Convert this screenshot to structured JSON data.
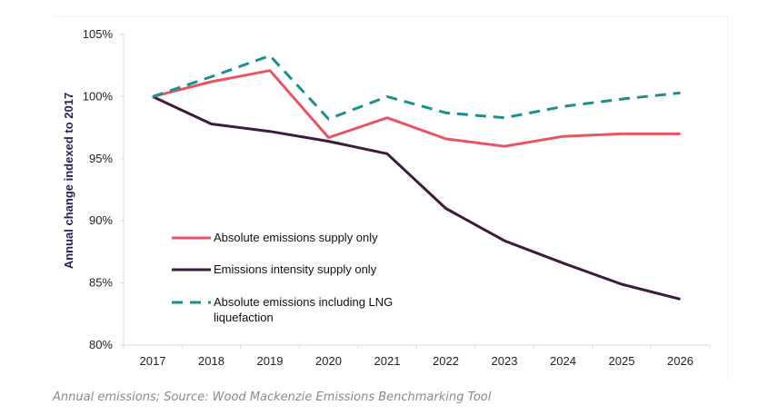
{
  "chart_data": {
    "type": "line",
    "title": "",
    "xlabel": "",
    "ylabel": "Annual change indexed to 2017",
    "x": [
      "2017",
      "2018",
      "2019",
      "2020",
      "2021",
      "2022",
      "2023",
      "2024",
      "2025",
      "2026"
    ],
    "ylim": [
      80,
      105
    ],
    "yticks": [
      80,
      85,
      90,
      95,
      100,
      105
    ],
    "ytick_labels": [
      "80%",
      "85%",
      "90%",
      "95%",
      "100%",
      "105%"
    ],
    "grid": false,
    "legend_position": "left",
    "series": [
      {
        "name": "Absolute emissions supply only",
        "color": "#e85561",
        "dash": "solid",
        "values": [
          100,
          101.2,
          102.1,
          96.7,
          98.3,
          96.6,
          96.0,
          96.8,
          97.0,
          97.0
        ]
      },
      {
        "name": "Emissions intensity supply only",
        "color": "#3d1b3b",
        "dash": "solid",
        "values": [
          100,
          97.8,
          97.2,
          96.4,
          95.4,
          91.0,
          88.4,
          86.6,
          84.9,
          83.7
        ]
      },
      {
        "name": "Absolute emissions including LNG liquefaction",
        "name_lines": [
          "Absolute emissions including LNG",
          "liquefaction"
        ],
        "color": "#1a8f8c",
        "dash": "dashed",
        "values": [
          100,
          101.6,
          103.3,
          98.2,
          100.0,
          98.7,
          98.3,
          99.2,
          99.8,
          100.3
        ]
      }
    ]
  },
  "caption": "Annual emissions; Source: Wood Mackenzie Emissions Benchmarking Tool"
}
